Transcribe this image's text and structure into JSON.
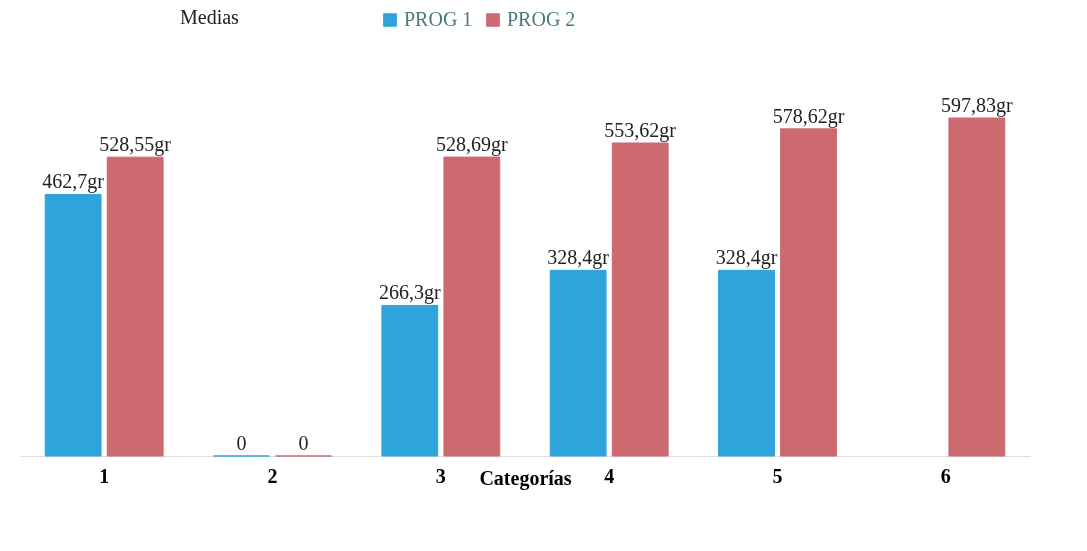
{
  "chart_data": {
    "type": "bar",
    "title": "Medias",
    "xlabel": "Categorías",
    "categories": [
      "1",
      "2",
      "3",
      "4",
      "5",
      "6"
    ],
    "series": [
      {
        "name": "PROG 1",
        "color": "#2ea3dc",
        "values": [
          462.7,
          0,
          266.3,
          328.4,
          328.4,
          null
        ],
        "value_labels": [
          "462,7gr",
          "0",
          "266,3gr",
          "328,4gr",
          "328,4gr",
          null
        ]
      },
      {
        "name": "PROG 2",
        "color": "#cc6a6f",
        "values": [
          528.55,
          0,
          528.69,
          553.62,
          578.62,
          597.83
        ],
        "value_labels": [
          "528,55gr",
          "0",
          "528,69gr",
          "553,62gr",
          "578,62gr",
          "597,83gr"
        ]
      }
    ],
    "legend": "top",
    "grid": false,
    "tick_labels": "x"
  }
}
